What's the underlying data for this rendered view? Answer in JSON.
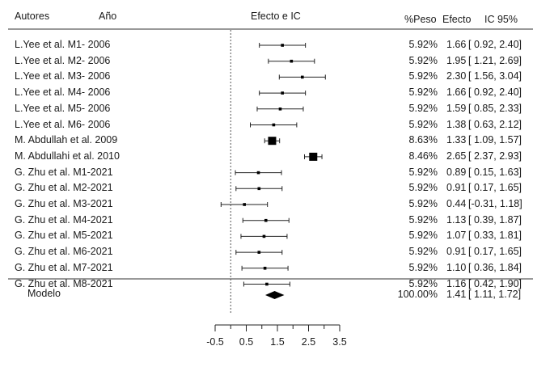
{
  "header": {
    "authors": "Autores",
    "year": "Año",
    "effect_ci": "Efecto e IC",
    "weight": "%Peso",
    "effect": "Efecto",
    "ci95": "IC 95%"
  },
  "chart_data": {
    "type": "forest",
    "xlim": [
      -0.5,
      3.5
    ],
    "x_ticks": [
      "-0.5",
      "0.5",
      "1.5",
      "2.5",
      "3.5"
    ],
    "reference_line": 0,
    "studies": [
      {
        "label": "L.Yee et al.  M1- 2006",
        "effect": 1.66,
        "lower": 0.92,
        "upper": 2.4,
        "weight": "5.92%",
        "effect_text": "1.66",
        "ci_text": "[ 0.92, 2.40]"
      },
      {
        "label": "L.Yee et al.  M2- 2006",
        "effect": 1.95,
        "lower": 1.21,
        "upper": 2.69,
        "weight": "5.92%",
        "effect_text": "1.95",
        "ci_text": "[ 1.21, 2.69]"
      },
      {
        "label": "L.Yee et al.  M3- 2006",
        "effect": 2.3,
        "lower": 1.56,
        "upper": 3.04,
        "weight": "5.92%",
        "effect_text": "2.30",
        "ci_text": "[ 1.56, 3.04]"
      },
      {
        "label": "L.Yee et al.  M4- 2006",
        "effect": 1.66,
        "lower": 0.92,
        "upper": 2.4,
        "weight": "5.92%",
        "effect_text": "1.66",
        "ci_text": "[ 0.92, 2.40]"
      },
      {
        "label": "L.Yee et al.  M5- 2006",
        "effect": 1.59,
        "lower": 0.85,
        "upper": 2.33,
        "weight": "5.92%",
        "effect_text": "1.59",
        "ci_text": "[ 0.85, 2.33]"
      },
      {
        "label": "L.Yee et al.  M6- 2006",
        "effect": 1.38,
        "lower": 0.63,
        "upper": 2.12,
        "weight": "5.92%",
        "effect_text": "1.38",
        "ci_text": "[ 0.63, 2.12]"
      },
      {
        "label": "M. Abdullah et al. 2009",
        "effect": 1.33,
        "lower": 1.09,
        "upper": 1.57,
        "weight": "8.63%",
        "effect_text": "1.33",
        "ci_text": "[ 1.09, 1.57]"
      },
      {
        "label": "M. Abdullahi et al. 2010",
        "effect": 2.65,
        "lower": 2.37,
        "upper": 2.93,
        "weight": "8.46%",
        "effect_text": "2.65",
        "ci_text": "[ 2.37, 2.93]"
      },
      {
        "label": "G. Zhu et al. M1-2021",
        "effect": 0.89,
        "lower": 0.15,
        "upper": 1.63,
        "weight": "5.92%",
        "effect_text": "0.89",
        "ci_text": "[ 0.15, 1.63]"
      },
      {
        "label": "G. Zhu et al. M2-2021",
        "effect": 0.91,
        "lower": 0.17,
        "upper": 1.65,
        "weight": "5.92%",
        "effect_text": "0.91",
        "ci_text": "[ 0.17, 1.65]"
      },
      {
        "label": "G. Zhu et al. M3-2021",
        "effect": 0.44,
        "lower": -0.31,
        "upper": 1.18,
        "weight": "5.92%",
        "effect_text": "0.44",
        "ci_text": "[-0.31, 1.18]"
      },
      {
        "label": "G. Zhu et al. M4-2021",
        "effect": 1.13,
        "lower": 0.39,
        "upper": 1.87,
        "weight": "5.92%",
        "effect_text": "1.13",
        "ci_text": "[ 0.39, 1.87]"
      },
      {
        "label": "G. Zhu et al. M5-2021",
        "effect": 1.07,
        "lower": 0.33,
        "upper": 1.81,
        "weight": "5.92%",
        "effect_text": "1.07",
        "ci_text": "[ 0.33, 1.81]"
      },
      {
        "label": "G. Zhu et al. M6-2021",
        "effect": 0.91,
        "lower": 0.17,
        "upper": 1.65,
        "weight": "5.92%",
        "effect_text": "0.91",
        "ci_text": "[ 0.17, 1.65]"
      },
      {
        "label": "G. Zhu et al. M7-2021",
        "effect": 1.1,
        "lower": 0.36,
        "upper": 1.84,
        "weight": "5.92%",
        "effect_text": "1.10",
        "ci_text": "[ 0.36, 1.84]"
      },
      {
        "label": "G. Zhu et al. M8-2021",
        "effect": 1.16,
        "lower": 0.42,
        "upper": 1.9,
        "weight": "5.92%",
        "effect_text": "1.16",
        "ci_text": "[ 0.42, 1.90]"
      }
    ],
    "summary": {
      "label": "Modelo",
      "effect": 1.41,
      "lower": 1.11,
      "upper": 1.72,
      "weight": "100.00%",
      "effect_text": "1.41",
      "ci_text": "[ 1.11, 1.72]"
    }
  }
}
